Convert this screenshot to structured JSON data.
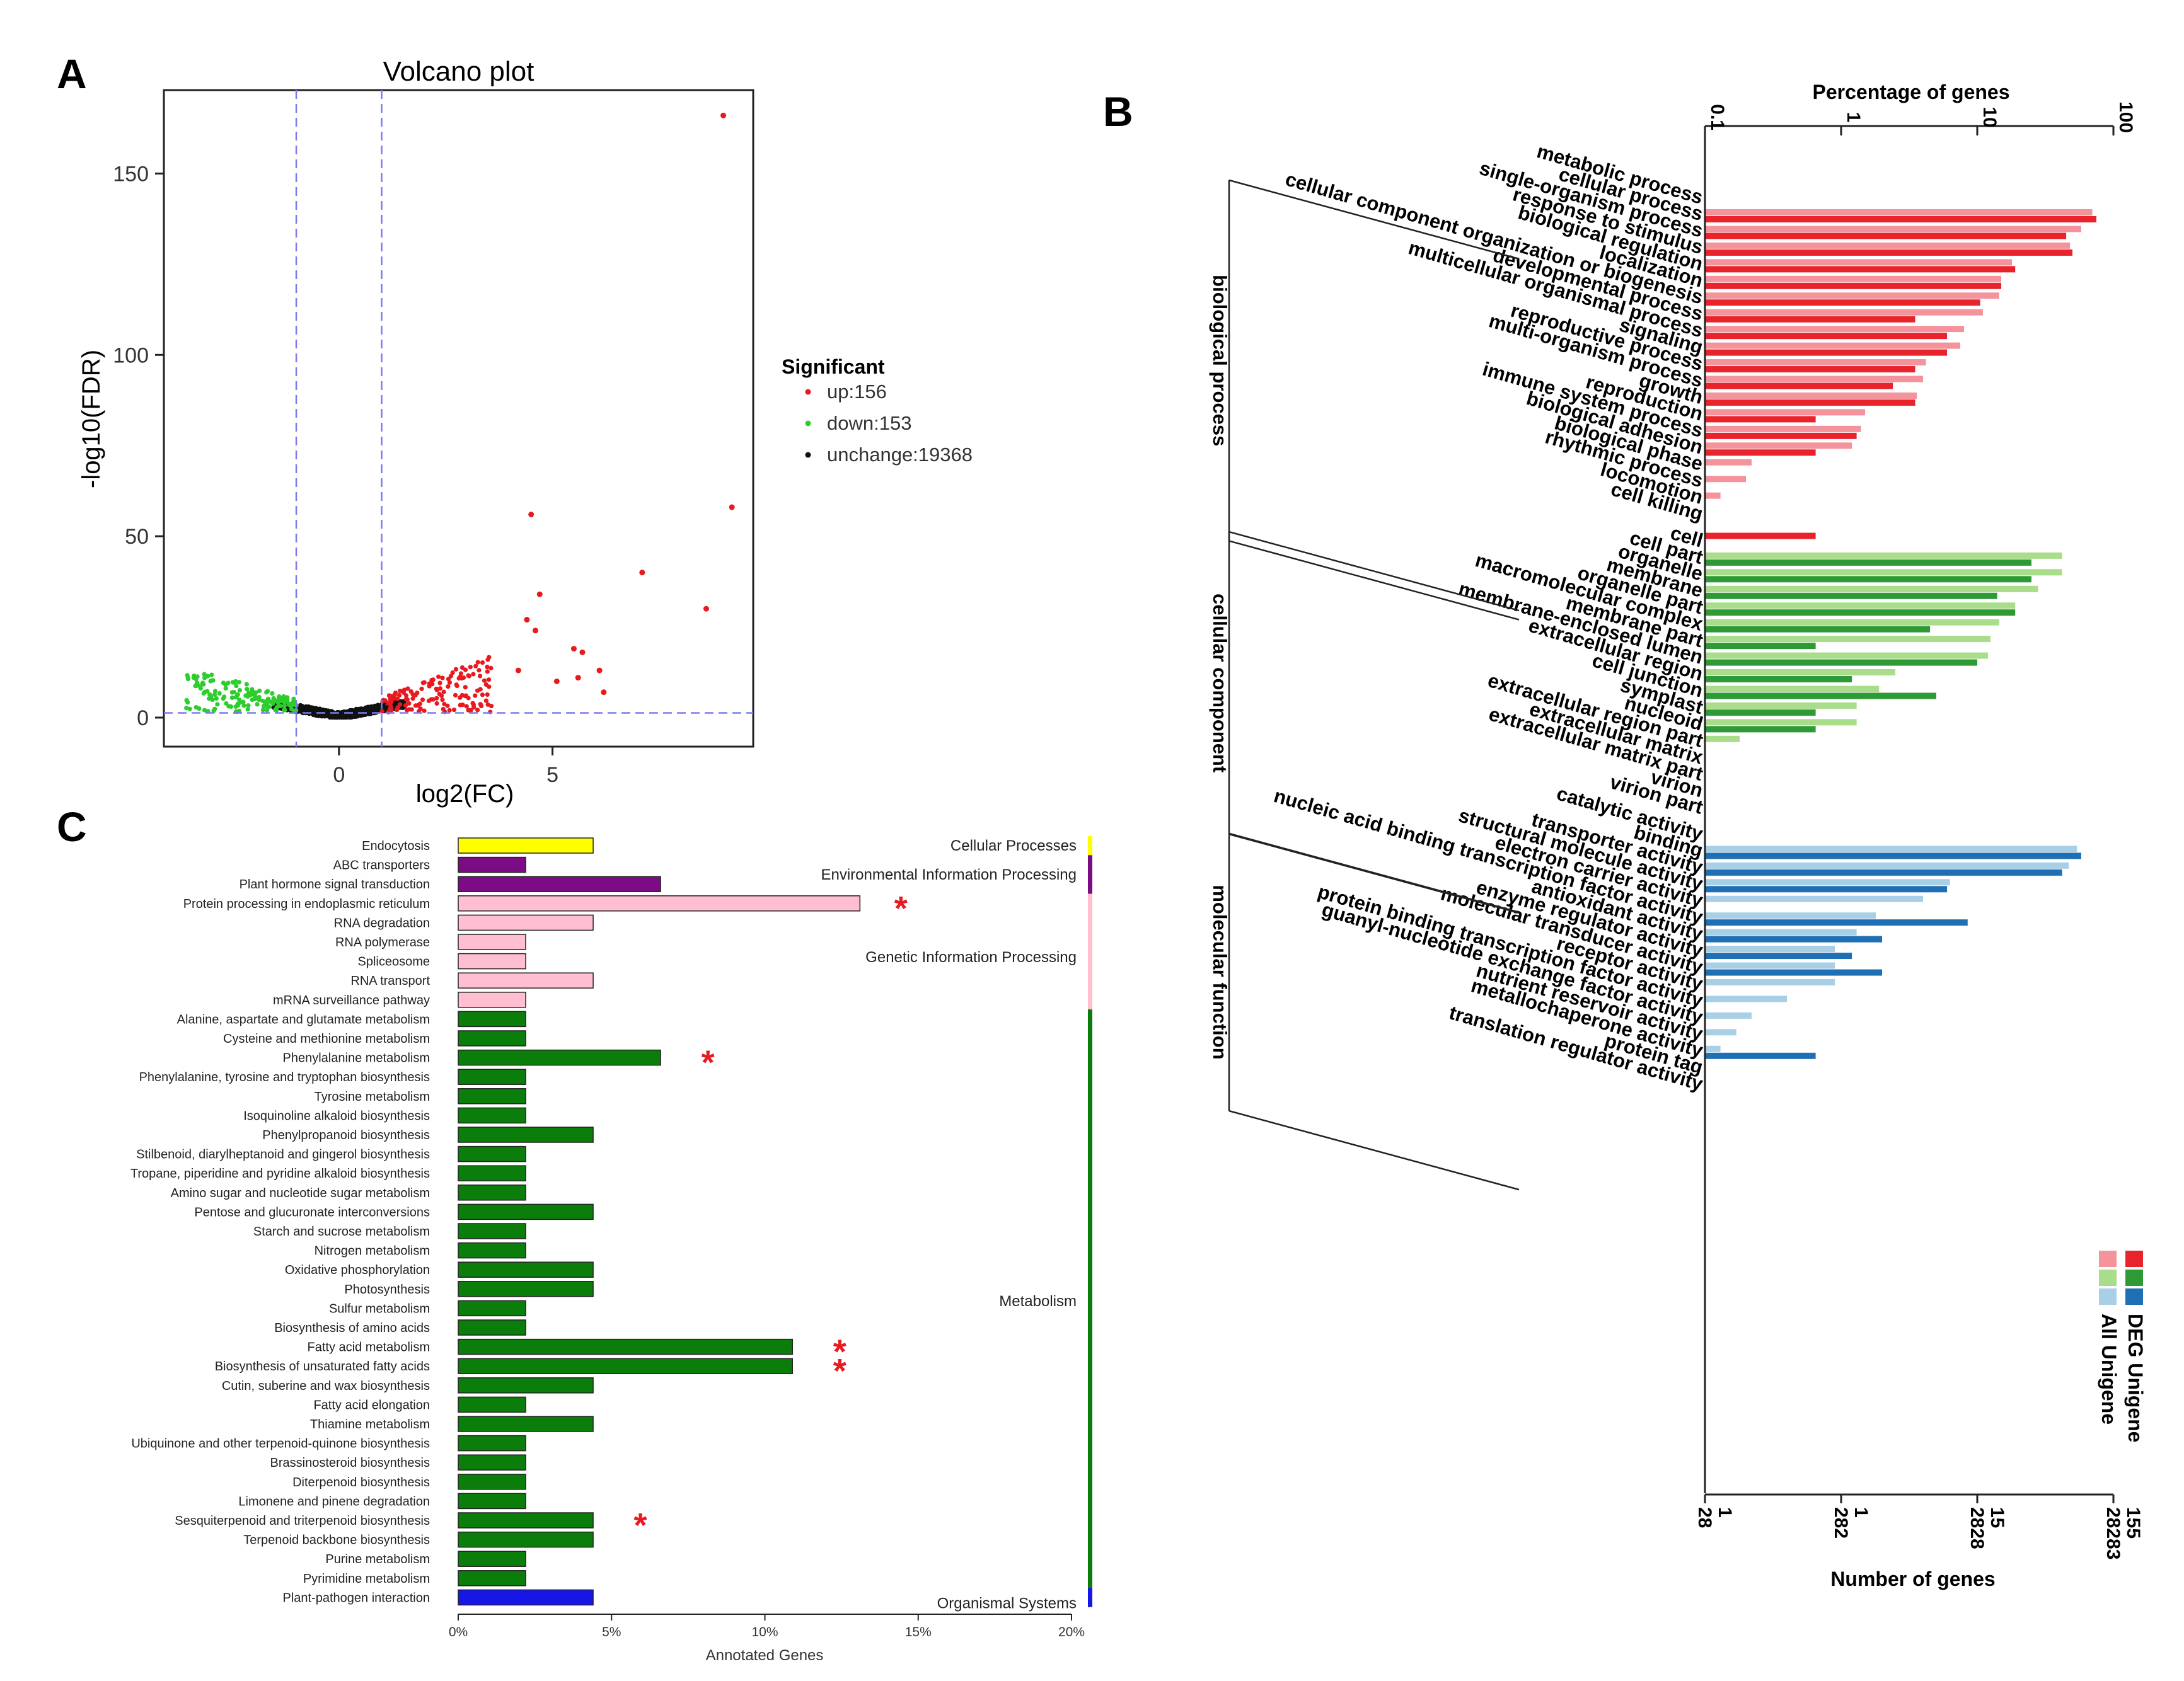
{
  "panels": {
    "a": "A",
    "b": "B",
    "c": "C"
  },
  "colors": {
    "up": "#e8191f",
    "down": "#2ccd2c",
    "unchange": "#111111",
    "guide": "#7b7bec",
    "bp_deg": "#e8232b",
    "bp_all": "#f4939b",
    "cc_deg": "#2e9a36",
    "cc_all": "#a9dc8b",
    "mf_deg": "#1f6fb4",
    "mf_all": "#a8cfe6",
    "kegg_cellular": "#ffff00",
    "kegg_env": "#7b0c84",
    "kegg_genetic": "#ffbfd0",
    "kegg_metabolism": "#0b7d0b",
    "kegg_organismal": "#1616e6",
    "star": "#e8191f"
  },
  "chart_data": [
    {
      "type": "scatter",
      "title": "Volcano plot",
      "xlabel": "log2(FC)",
      "ylabel": "-log10(FDR)",
      "xlim": [
        -4.1,
        9.7
      ],
      "ylim": [
        -8,
        173
      ],
      "xticks": [
        "0",
        "5"
      ],
      "yticks": [
        "0",
        "50",
        "100",
        "150"
      ],
      "guides": {
        "vertical_x": [
          -1,
          1
        ],
        "horizontal_y": 1.3
      },
      "legend": {
        "title": "Significant",
        "entries": [
          {
            "name": "up",
            "label": "up:156",
            "count": 156
          },
          {
            "name": "down",
            "label": "down:153",
            "count": 153
          },
          {
            "name": "unchange",
            "label": "unchange:19368",
            "count": 19368
          }
        ]
      },
      "highlight_points_up": [
        [
          9.0,
          166
        ],
        [
          9.2,
          58
        ],
        [
          4.5,
          56
        ],
        [
          7.1,
          40
        ],
        [
          4.7,
          34
        ],
        [
          8.6,
          30
        ],
        [
          4.4,
          27
        ],
        [
          4.6,
          24
        ],
        [
          5.5,
          19
        ],
        [
          5.7,
          18
        ],
        [
          4.2,
          13
        ],
        [
          6.1,
          13
        ],
        [
          5.6,
          11
        ],
        [
          5.1,
          10
        ],
        [
          6.2,
          7
        ]
      ]
    },
    {
      "type": "bar",
      "orientation": "horizontal",
      "x_axis": "log",
      "title_top": "Percentage of genes",
      "title_bottom": "Number of genes",
      "top_ticks": [
        "0.1",
        "1",
        "10",
        "100"
      ],
      "bottom_ticks_all": [
        "28",
        "282",
        "2828",
        "28283"
      ],
      "bottom_ticks_deg": [
        "1",
        "1",
        "15",
        "155"
      ],
      "legend": [
        "DEG Unigene",
        "All Unigene"
      ],
      "groups": [
        {
          "name": "biological process",
          "color_key": "bp",
          "terms": [
            {
              "label": "metabolic process",
              "all": 70,
              "deg": 75
            },
            {
              "label": "cellular process",
              "all": 58,
              "deg": 45
            },
            {
              "label": "single-organism process",
              "all": 48,
              "deg": 50
            },
            {
              "label": "response to stimulus",
              "all": 18,
              "deg": 19
            },
            {
              "label": "biological regulation",
              "all": 15,
              "deg": 15
            },
            {
              "label": "localization",
              "all": 14.5,
              "deg": 10.5
            },
            {
              "label": "cellular component organization or biogenesis",
              "all": 11,
              "deg": 3.5
            },
            {
              "label": "developmental process",
              "all": 8,
              "deg": 6
            },
            {
              "label": "multicellular organismal process",
              "all": 7.5,
              "deg": 6
            },
            {
              "label": "signaling",
              "all": 4.2,
              "deg": 3.5
            },
            {
              "label": "reproductive process",
              "all": 4,
              "deg": 2.4
            },
            {
              "label": "multi-organism process",
              "all": 3.6,
              "deg": 3.5
            },
            {
              "label": "growth",
              "all": 1.5,
              "deg": 0.65
            },
            {
              "label": "reproduction",
              "all": 1.4,
              "deg": 1.3
            },
            {
              "label": "immune system process",
              "all": 1.2,
              "deg": 0.65
            },
            {
              "label": "biological adhesion",
              "all": 0.22,
              "deg": 0
            },
            {
              "label": "biological phase",
              "all": 0.2,
              "deg": 0
            },
            {
              "label": "rhythmic process",
              "all": 0.13,
              "deg": 0
            },
            {
              "label": "locomotion",
              "all": 0,
              "deg": 0
            },
            {
              "label": "cell killing",
              "all": 0,
              "deg": 0.65
            }
          ]
        },
        {
          "name": "cellular component",
          "color_key": "cc",
          "terms": [
            {
              "label": "cell",
              "all": 42,
              "deg": 25
            },
            {
              "label": "cell part",
              "all": 42,
              "deg": 25
            },
            {
              "label": "organelle",
              "all": 28,
              "deg": 14
            },
            {
              "label": "membrane",
              "all": 19,
              "deg": 19
            },
            {
              "label": "organelle part",
              "all": 14.5,
              "deg": 4.5
            },
            {
              "label": "macromolecular complex",
              "all": 12.5,
              "deg": 0.65
            },
            {
              "label": "membrane part",
              "all": 12,
              "deg": 10
            },
            {
              "label": "membrane-enclosed lumen",
              "all": 2.5,
              "deg": 1.2
            },
            {
              "label": "extracellular region",
              "all": 1.9,
              "deg": 5
            },
            {
              "label": "cell junction",
              "all": 1.3,
              "deg": 0.65
            },
            {
              "label": "symplast",
              "all": 1.3,
              "deg": 0.65
            },
            {
              "label": "nucleoid",
              "all": 0.18,
              "deg": 0
            },
            {
              "label": "extracellular region part",
              "all": 0,
              "deg": 0
            },
            {
              "label": "extracellular matrix",
              "all": 0,
              "deg": 0
            },
            {
              "label": "extracellular matrix part",
              "all": 0,
              "deg": 0
            },
            {
              "label": "virion",
              "all": 0,
              "deg": 0
            },
            {
              "label": "virion part",
              "all": 0,
              "deg": 0
            }
          ]
        },
        {
          "name": "molecular function",
          "color_key": "mf",
          "terms": [
            {
              "label": "catalytic activity",
              "all": 54,
              "deg": 58
            },
            {
              "label": "binding",
              "all": 47,
              "deg": 42
            },
            {
              "label": "transporter activity",
              "all": 6.3,
              "deg": 6.0
            },
            {
              "label": "structural molecule activity",
              "all": 4.0,
              "deg": 0
            },
            {
              "label": "electron carrier activity",
              "all": 1.8,
              "deg": 8.5
            },
            {
              "label": "nucleic acid binding transcription factor activity",
              "all": 1.3,
              "deg": 2.0
            },
            {
              "label": "antioxidant activity",
              "all": 0.9,
              "deg": 1.2
            },
            {
              "label": "enzyme regulator activity",
              "all": 0.9,
              "deg": 2.0
            },
            {
              "label": "molecular transducer activity",
              "all": 0.9,
              "deg": 0
            },
            {
              "label": "receptor activity",
              "all": 0.4,
              "deg": 0
            },
            {
              "label": "protein binding transcription factor activity",
              "all": 0.22,
              "deg": 0
            },
            {
              "label": "guanyl-nucleotide exchange factor activity",
              "all": 0.17,
              "deg": 0
            },
            {
              "label": "nutrient reservoir activity",
              "all": 0.13,
              "deg": 0.65
            },
            {
              "label": "metallochaperone activity",
              "all": 0,
              "deg": 0
            },
            {
              "label": "protein tag",
              "all": 0,
              "deg": 0
            },
            {
              "label": "translation regulator activity",
              "all": 0,
              "deg": 0
            }
          ]
        }
      ]
    },
    {
      "type": "bar",
      "orientation": "horizontal",
      "xlabel": "Annotated Genes",
      "xlim": [
        0,
        20
      ],
      "xticks": [
        "0%",
        "5%",
        "10%",
        "15%",
        "20%"
      ],
      "categories": [
        {
          "name": "Cellular Processes",
          "color_key": "kegg_cellular",
          "pathways": [
            {
              "label": "Endocytosis",
              "value": 4.4
            }
          ]
        },
        {
          "name": "Environmental Information Processing",
          "color_key": "kegg_env",
          "pathways": [
            {
              "label": "ABC transporters",
              "value": 2.2
            },
            {
              "label": "Plant hormone signal transduction",
              "value": 6.6
            }
          ]
        },
        {
          "name": "Genetic Information Processing",
          "color_key": "kegg_genetic",
          "pathways": [
            {
              "label": "Protein processing in endoplasmic reticulum",
              "value": 13.1,
              "star": "*"
            },
            {
              "label": "RNA degradation",
              "value": 4.4
            },
            {
              "label": "RNA polymerase",
              "value": 2.2
            },
            {
              "label": "Spliceosome",
              "value": 2.2
            },
            {
              "label": "RNA transport",
              "value": 4.4
            },
            {
              "label": "mRNA surveillance pathway",
              "value": 2.2
            }
          ]
        },
        {
          "name": "Metabolism",
          "color_key": "kegg_metabolism",
          "pathways": [
            {
              "label": "Alanine, aspartate and glutamate metabolism",
              "value": 2.2
            },
            {
              "label": "Cysteine and methionine metabolism",
              "value": 2.2
            },
            {
              "label": "Phenylalanine metabolism",
              "value": 6.6,
              "star": "*"
            },
            {
              "label": "Phenylalanine, tyrosine and tryptophan biosynthesis",
              "value": 2.2
            },
            {
              "label": "Tyrosine metabolism",
              "value": 2.2
            },
            {
              "label": "Isoquinoline alkaloid biosynthesis",
              "value": 2.2
            },
            {
              "label": "Phenylpropanoid biosynthesis",
              "value": 4.4
            },
            {
              "label": "Stilbenoid, diarylheptanoid and gingerol biosynthesis",
              "value": 2.2
            },
            {
              "label": "Tropane, piperidine and pyridine alkaloid biosynthesis",
              "value": 2.2
            },
            {
              "label": "Amino sugar and nucleotide sugar metabolism",
              "value": 2.2
            },
            {
              "label": "Pentose and glucuronate interconversions",
              "value": 4.4
            },
            {
              "label": "Starch and sucrose metabolism",
              "value": 2.2
            },
            {
              "label": "Nitrogen metabolism",
              "value": 2.2
            },
            {
              "label": "Oxidative phosphorylation",
              "value": 4.4
            },
            {
              "label": "Photosynthesis",
              "value": 4.4
            },
            {
              "label": "Sulfur metabolism",
              "value": 2.2
            },
            {
              "label": "Biosynthesis of amino acids",
              "value": 2.2
            },
            {
              "label": "Fatty acid metabolism",
              "value": 10.9,
              "star": "*"
            },
            {
              "label": "Biosynthesis of unsaturated fatty acids",
              "value": 10.9,
              "star": "*"
            },
            {
              "label": "Cutin, suberine and wax biosynthesis",
              "value": 4.4
            },
            {
              "label": "Fatty acid elongation",
              "value": 2.2
            },
            {
              "label": "Thiamine metabolism",
              "value": 4.4
            },
            {
              "label": "Ubiquinone and other terpenoid-quinone biosynthesis",
              "value": 2.2
            },
            {
              "label": "Brassinosteroid biosynthesis",
              "value": 2.2
            },
            {
              "label": "Diterpenoid biosynthesis",
              "value": 2.2
            },
            {
              "label": "Limonene and pinene degradation",
              "value": 2.2
            },
            {
              "label": "Sesquiterpenoid and triterpenoid biosynthesis",
              "value": 4.4,
              "star": "*"
            },
            {
              "label": "Terpenoid backbone biosynthesis",
              "value": 4.4
            },
            {
              "label": "Purine metabolism",
              "value": 2.2
            },
            {
              "label": "Pyrimidine metabolism",
              "value": 2.2
            }
          ]
        },
        {
          "name": "Organismal Systems",
          "color_key": "kegg_organismal",
          "pathways": [
            {
              "label": "Plant-pathogen interaction",
              "value": 4.4
            }
          ]
        }
      ]
    }
  ]
}
